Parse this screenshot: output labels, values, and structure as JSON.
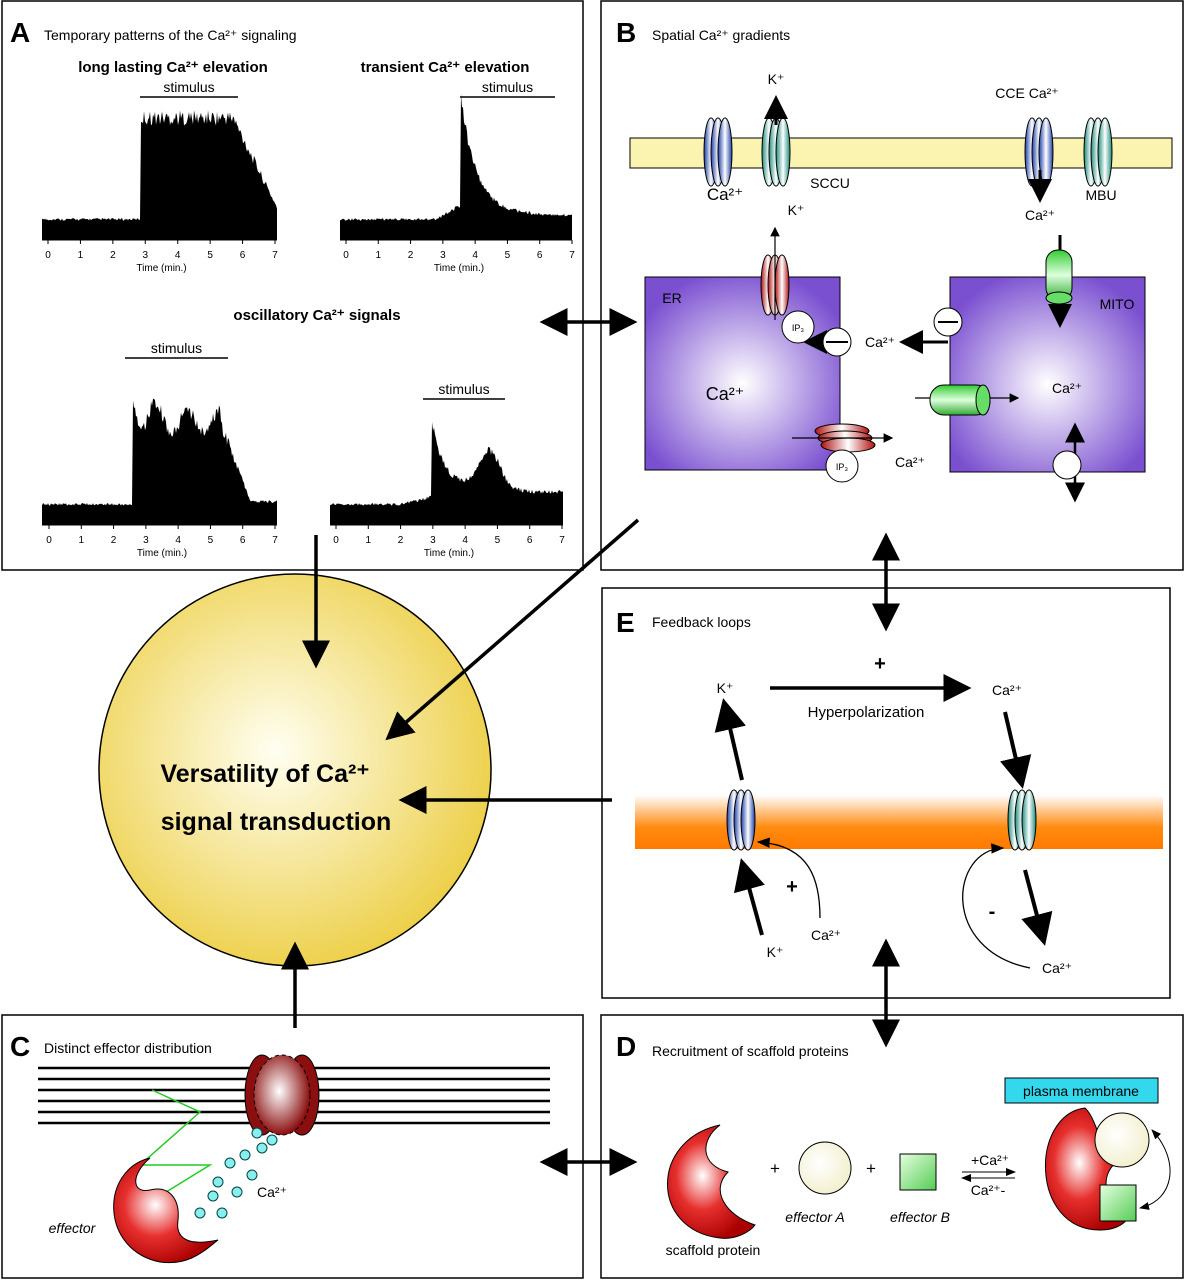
{
  "panel_a": {
    "letter": "A",
    "title": "Temporary patterns of the Ca²⁺ signaling",
    "oscillatory_title": "oscillatory Ca²⁺ signals",
    "plots": [
      {
        "title": "long lasting Ca²⁺ elevation",
        "stimulus": "stimulus",
        "xticks": [
          0,
          1,
          2,
          3,
          4,
          5,
          6,
          7
        ],
        "xlabel": "Time (min.)"
      },
      {
        "title": "transient Ca²⁺ elevation",
        "stimulus": "stimulus",
        "xticks": [
          0,
          1,
          2,
          3,
          4,
          5,
          6,
          7
        ],
        "xlabel": "Time (min.)"
      },
      {
        "stimulus": "stimulus",
        "xticks": [
          0,
          1,
          2,
          3,
          4,
          5,
          6,
          7
        ],
        "xlabel": "Time (min.)"
      },
      {
        "stimulus": "stimulus",
        "xticks": [
          0,
          1,
          2,
          3,
          4,
          5,
          6,
          7
        ],
        "xlabel": "Time (min.)"
      }
    ]
  },
  "panel_b": {
    "letter": "B",
    "title": "Spatial Ca²⁺ gradients",
    "labels": [
      "K⁺",
      "Ca²⁺",
      "SCCU",
      "CCE Ca²⁺",
      "MBU",
      "Ca²⁺",
      "K⁺",
      "ER",
      "MITO",
      "Ca²⁺",
      "Ca²⁺",
      "Ca²⁺",
      "Ca²⁺",
      "IP₃",
      "IP₃"
    ]
  },
  "center": {
    "line1": "Versatility of Ca²⁺",
    "line2": "signal transduction"
  },
  "panel_e": {
    "letter": "E",
    "title": "Feedback loops",
    "labels": [
      "+",
      "K⁺",
      "Ca²⁺",
      "Hyperpolarization",
      "+",
      "K⁺",
      "Ca²⁺",
      "-",
      "Ca²⁺"
    ]
  },
  "panel_c": {
    "letter": "C",
    "title": "Distinct effector distribution",
    "labels": [
      "Ca²⁺",
      "effector"
    ]
  },
  "panel_d": {
    "letter": "D",
    "title": "Recruitment of scaffold proteins",
    "labels": [
      "+",
      "+",
      "effector A",
      "effector B",
      "scaffold protein",
      "+Ca²⁺",
      "Ca²⁺-",
      "plasma membrane"
    ]
  }
}
